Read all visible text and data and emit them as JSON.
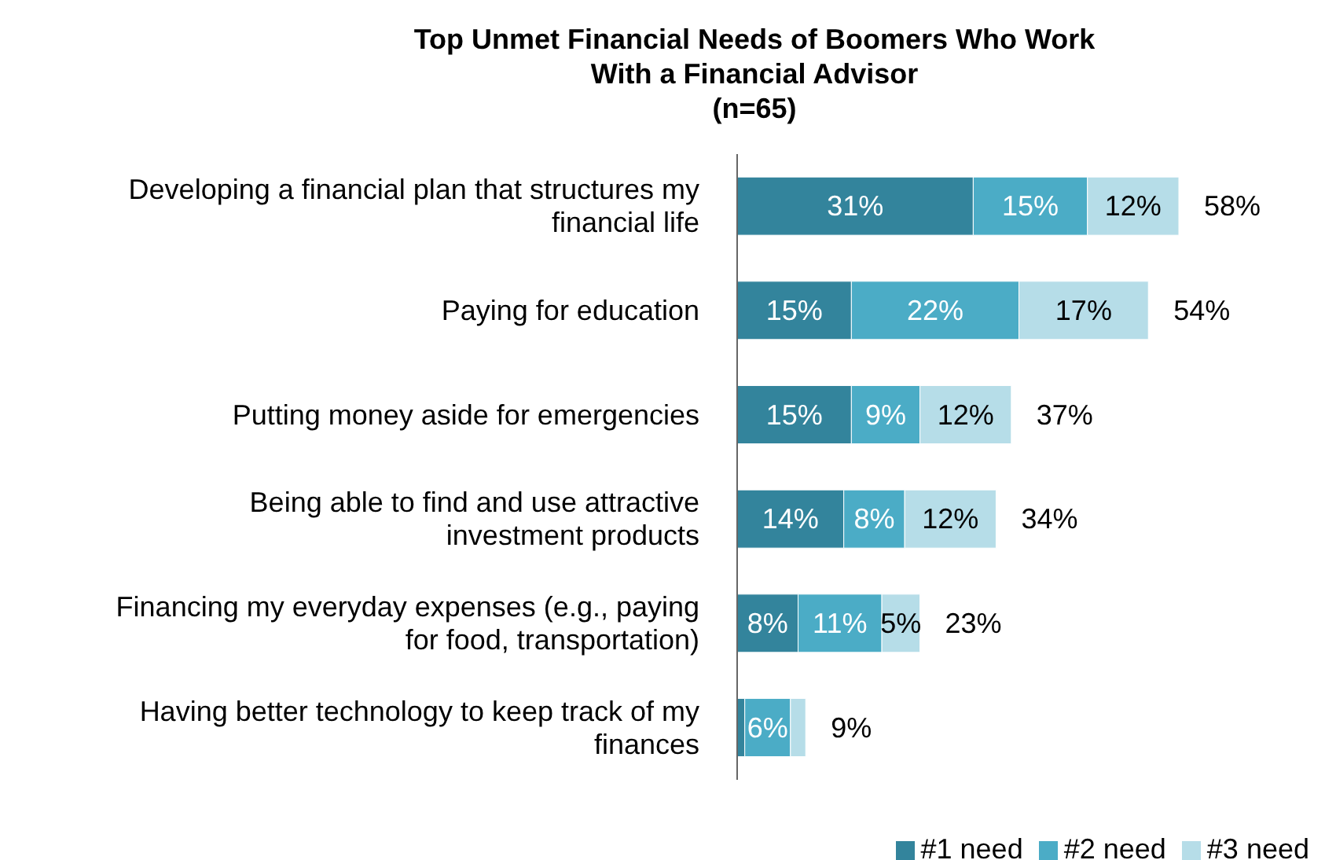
{
  "chart_data": {
    "type": "bar",
    "orientation": "horizontal",
    "stacked": true,
    "title": "Top Unmet Financial Needs of Boomers Who Work With a Financial Advisor",
    "subtitle": "(n=65)",
    "categories": [
      "Developing a financial plan that structures my financial life",
      "Paying for education",
      "Putting money aside for emergencies",
      "Being able to find and use attractive investment products",
      "Financing my everyday expenses (e.g., paying for food, transportation)",
      "Having better technology to keep track of my finances"
    ],
    "series": [
      {
        "name": "#1 need",
        "color": "#33849c",
        "values": [
          31,
          15,
          15,
          14,
          8,
          1
        ],
        "value_labels": [
          "31%",
          "15%",
          "15%",
          "14%",
          "8%",
          null
        ]
      },
      {
        "name": "#2 need",
        "color": "#4bacc6",
        "values": [
          15,
          22,
          9,
          8,
          11,
          6
        ],
        "value_labels": [
          "15%",
          "22%",
          "9%",
          "8%",
          "11%",
          "6%"
        ]
      },
      {
        "name": "#3 need",
        "color": "#b6dde8",
        "values": [
          12,
          17,
          12,
          12,
          5,
          2
        ],
        "value_labels": [
          "12%",
          "17%",
          "12%",
          "12%",
          "5%",
          null
        ]
      }
    ],
    "totals": [
      "58%",
      "54%",
      "37%",
      "34%",
      "23%",
      "9%"
    ],
    "tick_labels": "y",
    "grid": false,
    "legend": "bottom right"
  }
}
